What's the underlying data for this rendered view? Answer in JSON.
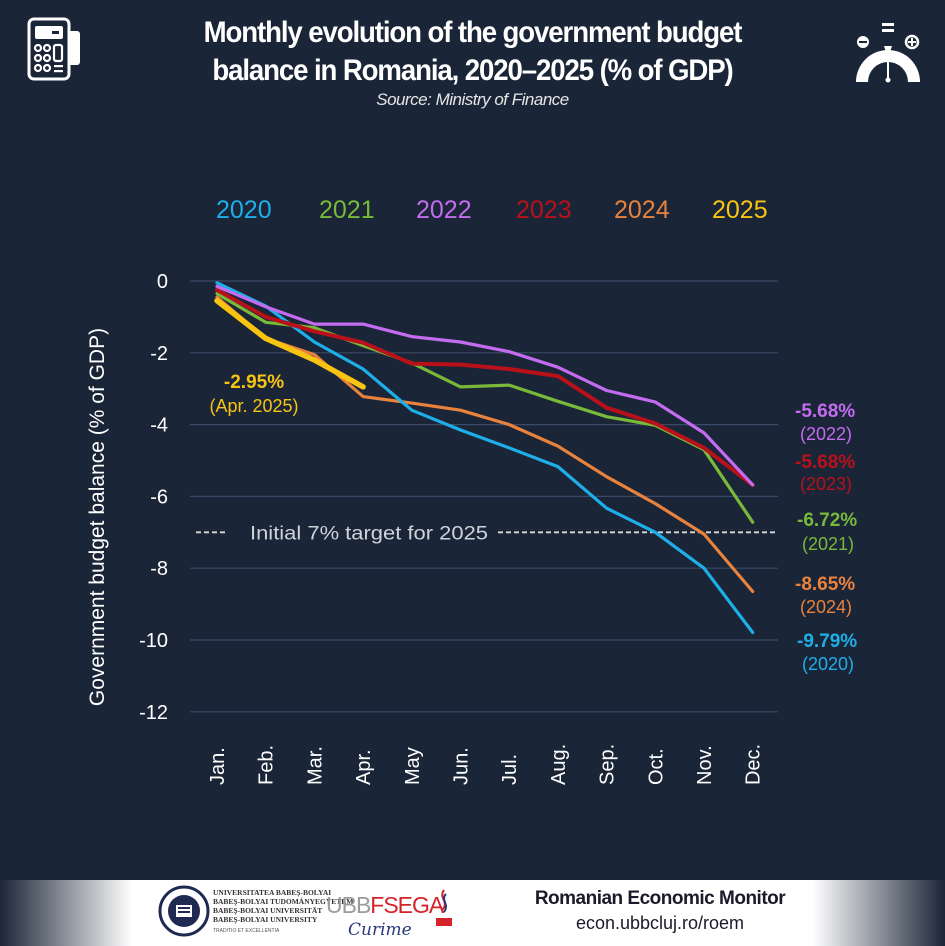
{
  "header": {
    "title_line1": "Monthly evolution of the government budget",
    "title_line2": "balance in Romania, 2020–2025 (% of GDP)",
    "source": "Source: Ministry of Finance",
    "left_icon": "calculator-icon",
    "right_icon": "gauge-balance-icon"
  },
  "chart_data": {
    "type": "line",
    "title": "Monthly evolution of the government budget balance in Romania, 2020–2025 (% of GDP)",
    "subtitle": "Source: Ministry of Finance",
    "xlabel": "",
    "ylabel": "Government budget balance (% of GDP)",
    "ylim": [
      -12,
      0
    ],
    "yticks": [
      0,
      -2,
      -4,
      -6,
      -8,
      -10,
      -12
    ],
    "grid": true,
    "legend_position": "top",
    "categories": [
      "Jan.",
      "Feb.",
      "Mar.",
      "Apr.",
      "May",
      "Jun.",
      "Jul.",
      "Aug.",
      "Sep.",
      "Oct.",
      "Nov.",
      "Dec."
    ],
    "series": [
      {
        "name": "2020",
        "color": "#1eaee8",
        "values": [
          -0.05,
          -0.7,
          -1.7,
          -2.45,
          -3.6,
          -4.15,
          -4.65,
          -5.17,
          -6.33,
          -7.0,
          -8.0,
          -9.79
        ]
      },
      {
        "name": "2021",
        "color": "#79b93a",
        "values": [
          -0.35,
          -1.15,
          -1.3,
          -1.8,
          -2.28,
          -2.95,
          -2.9,
          -3.35,
          -3.78,
          -4.02,
          -4.7,
          -6.72
        ]
      },
      {
        "name": "2022",
        "color": "#c36cf0",
        "values": [
          -0.15,
          -0.72,
          -1.2,
          -1.2,
          -1.55,
          -1.7,
          -1.97,
          -2.4,
          -3.05,
          -3.37,
          -4.23,
          -5.68
        ]
      },
      {
        "name": "2023",
        "color": "#b8111a",
        "values": [
          -0.25,
          -1.0,
          -1.4,
          -1.72,
          -2.3,
          -2.33,
          -2.45,
          -2.65,
          -3.53,
          -3.97,
          -4.65,
          -5.68
        ]
      },
      {
        "name": "2024",
        "color": "#e8823c",
        "values": [
          -0.45,
          -1.6,
          -2.05,
          -3.22,
          -3.4,
          -3.6,
          -4.0,
          -4.6,
          -5.45,
          -6.2,
          -7.05,
          -8.65
        ]
      },
      {
        "name": "2025",
        "color": "#f7c412",
        "values": [
          -0.55,
          -1.6,
          -2.2,
          -2.95
        ]
      }
    ],
    "reference_line": {
      "value": -7,
      "label": "Initial 7% target for 2025",
      "color": "#d9d9d9"
    },
    "annotations": [
      {
        "series": "2025",
        "value": "-2.95%",
        "note": "(Apr. 2025)"
      },
      {
        "series": "2022",
        "value": "-5.68%",
        "note": "(2022)"
      },
      {
        "series": "2023",
        "value": "-5.68%",
        "note": "(2023)"
      },
      {
        "series": "2021",
        "value": "-6.72%",
        "note": "(2021)"
      },
      {
        "series": "2024",
        "value": "-8.65%",
        "note": "(2024)"
      },
      {
        "series": "2020",
        "value": "-9.79%",
        "note": "(2020)"
      }
    ]
  },
  "footer": {
    "university_lines": [
      "UNIVERSITATEA BABEȘ-BOLYAI",
      "BABEŞ-BOLYAI TUDOMÁNYEGYETEM",
      "BABEŞ-BOLYAI UNIVERSITÄT",
      "BABEŞ-BOLYAI UNIVERSITY"
    ],
    "university_motto": "TRADITIO ET EXCELLENTIA",
    "fsega_ubb": "UBB",
    "fsega_name": "FSEGA",
    "signature": "Curime",
    "monitor_title": "Romanian Economic Monitor",
    "monitor_url": "econ.ubbcluj.ro/roem"
  }
}
